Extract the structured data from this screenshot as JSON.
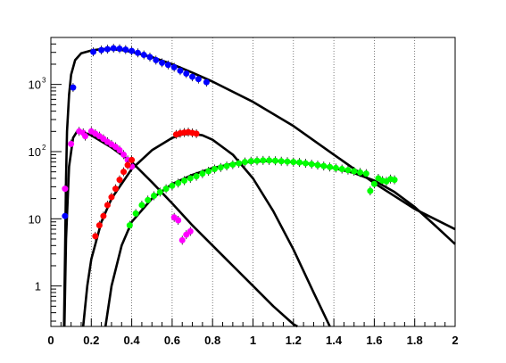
{
  "chart_data": {
    "type": "scatter",
    "title": "",
    "xlabel": "",
    "ylabel": "",
    "xlim": [
      0,
      2
    ],
    "ylim": [
      0.25,
      5000
    ],
    "yscale": "log",
    "grid": "vertical dotted lines at major x ticks",
    "x_ticks": [
      {
        "value": 0,
        "label": "0"
      },
      {
        "value": 0.2,
        "label": "0.2"
      },
      {
        "value": 0.4,
        "label": "0.4"
      },
      {
        "value": 0.6,
        "label": "0.6"
      },
      {
        "value": 0.8,
        "label": "0.8"
      },
      {
        "value": 1.0,
        "label": "1"
      },
      {
        "value": 1.2,
        "label": "1.2"
      },
      {
        "value": 1.4,
        "label": "1.4"
      },
      {
        "value": 1.6,
        "label": "1.6"
      },
      {
        "value": 1.8,
        "label": "1.8"
      },
      {
        "value": 2.0,
        "label": "2"
      }
    ],
    "y_ticks": [
      {
        "value": 1,
        "base": "1",
        "exp": ""
      },
      {
        "value": 10,
        "base": "10",
        "exp": ""
      },
      {
        "value": 100,
        "base": "10",
        "exp": "2"
      },
      {
        "value": 1000,
        "base": "10",
        "exp": "3"
      }
    ],
    "series": [
      {
        "color": "#0000ff",
        "points": [
          [
            0.07,
            11
          ],
          [
            0.11,
            900
          ],
          [
            0.21,
            3050
          ],
          [
            0.25,
            3250
          ],
          [
            0.28,
            3350
          ],
          [
            0.31,
            3450
          ],
          [
            0.34,
            3400
          ],
          [
            0.37,
            3300
          ],
          [
            0.4,
            3150
          ],
          [
            0.43,
            2950
          ],
          [
            0.46,
            2750
          ],
          [
            0.49,
            2550
          ],
          [
            0.52,
            2300
          ],
          [
            0.55,
            2100
          ],
          [
            0.58,
            1950
          ],
          [
            0.61,
            1800
          ],
          [
            0.64,
            1600
          ],
          [
            0.67,
            1450
          ],
          [
            0.7,
            1300
          ],
          [
            0.73,
            1200
          ],
          [
            0.77,
            1080
          ]
        ]
      },
      {
        "color": "#ff00ff",
        "points": [
          [
            0.07,
            28
          ],
          [
            0.1,
            130
          ],
          [
            0.14,
            200
          ],
          [
            0.16,
            190
          ],
          [
            0.17,
            170
          ],
          [
            0.2,
            200
          ],
          [
            0.22,
            185
          ],
          [
            0.24,
            170
          ],
          [
            0.26,
            155
          ],
          [
            0.28,
            140
          ],
          [
            0.3,
            128
          ],
          [
            0.32,
            118
          ],
          [
            0.34,
            105
          ],
          [
            0.36,
            90
          ],
          [
            0.38,
            75
          ],
          [
            0.4,
            60
          ],
          [
            0.61,
            10.5
          ],
          [
            0.63,
            9.5
          ],
          [
            0.65,
            4.8
          ],
          [
            0.67,
            5.8
          ],
          [
            0.69,
            6.5
          ]
        ]
      },
      {
        "color": "#ff0000",
        "points": [
          [
            0.22,
            5.5
          ],
          [
            0.24,
            8
          ],
          [
            0.26,
            11
          ],
          [
            0.28,
            16
          ],
          [
            0.3,
            21
          ],
          [
            0.32,
            28
          ],
          [
            0.34,
            38
          ],
          [
            0.36,
            50
          ],
          [
            0.38,
            63
          ],
          [
            0.4,
            75
          ],
          [
            0.62,
            180
          ],
          [
            0.64,
            188
          ],
          [
            0.66,
            192
          ],
          [
            0.68,
            195
          ],
          [
            0.7,
            190
          ],
          [
            0.72,
            185
          ]
        ]
      },
      {
        "color": "#00ff00",
        "points": [
          [
            0.39,
            8
          ],
          [
            0.42,
            12
          ],
          [
            0.45,
            16
          ],
          [
            0.48,
            19
          ],
          [
            0.51,
            22
          ],
          [
            0.54,
            25
          ],
          [
            0.57,
            28
          ],
          [
            0.6,
            31
          ],
          [
            0.63,
            34
          ],
          [
            0.66,
            37
          ],
          [
            0.69,
            40
          ],
          [
            0.72,
            43
          ],
          [
            0.75,
            47
          ],
          [
            0.78,
            51
          ],
          [
            0.81,
            55
          ],
          [
            0.84,
            58
          ],
          [
            0.87,
            61
          ],
          [
            0.9,
            64
          ],
          [
            0.93,
            67
          ],
          [
            0.96,
            70
          ],
          [
            0.99,
            72
          ],
          [
            1.02,
            73
          ],
          [
            1.05,
            74
          ],
          [
            1.08,
            74
          ],
          [
            1.11,
            73
          ],
          [
            1.14,
            72
          ],
          [
            1.17,
            71
          ],
          [
            1.2,
            70
          ],
          [
            1.23,
            69
          ],
          [
            1.26,
            67
          ],
          [
            1.29,
            65
          ],
          [
            1.32,
            63
          ],
          [
            1.35,
            61
          ],
          [
            1.38,
            59
          ],
          [
            1.41,
            57
          ],
          [
            1.44,
            55
          ],
          [
            1.47,
            53
          ],
          [
            1.5,
            51
          ],
          [
            1.53,
            49
          ],
          [
            1.56,
            47
          ],
          [
            1.58,
            26
          ],
          [
            1.6,
            33
          ],
          [
            1.62,
            40
          ],
          [
            1.64,
            37
          ],
          [
            1.66,
            36
          ],
          [
            1.68,
            39
          ],
          [
            1.7,
            38
          ]
        ]
      }
    ],
    "curves": [
      {
        "name_hidden": "",
        "points": [
          [
            0.065,
            0.25
          ],
          [
            0.07,
            3
          ],
          [
            0.075,
            40
          ],
          [
            0.08,
            200
          ],
          [
            0.09,
            700
          ],
          [
            0.1,
            1400
          ],
          [
            0.12,
            2300
          ],
          [
            0.15,
            2900
          ],
          [
            0.2,
            3200
          ],
          [
            0.25,
            3350
          ],
          [
            0.3,
            3350
          ],
          [
            0.35,
            3250
          ],
          [
            0.4,
            3050
          ],
          [
            0.5,
            2550
          ],
          [
            0.6,
            2000
          ],
          [
            0.7,
            1500
          ],
          [
            0.8,
            1100
          ],
          [
            1.0,
            550
          ],
          [
            1.2,
            240
          ],
          [
            1.4,
            90
          ],
          [
            1.6,
            34
          ],
          [
            1.8,
            14
          ],
          [
            2.0,
            7
          ]
        ]
      },
      {
        "name_hidden": "",
        "points": [
          [
            0.067,
            0.25
          ],
          [
            0.075,
            5
          ],
          [
            0.09,
            60
          ],
          [
            0.11,
            160
          ],
          [
            0.13,
            200
          ],
          [
            0.15,
            200
          ],
          [
            0.2,
            175
          ],
          [
            0.3,
            115
          ],
          [
            0.4,
            70
          ],
          [
            0.5,
            35
          ],
          [
            0.6,
            17
          ],
          [
            0.7,
            8
          ],
          [
            0.8,
            4
          ],
          [
            0.9,
            2
          ],
          [
            1.0,
            1.0
          ],
          [
            1.1,
            0.5
          ],
          [
            1.2,
            0.27
          ],
          [
            1.22,
            0.25
          ]
        ]
      },
      {
        "name_hidden": "",
        "points": [
          [
            0.16,
            0.25
          ],
          [
            0.18,
            1
          ],
          [
            0.2,
            2.5
          ],
          [
            0.25,
            9
          ],
          [
            0.3,
            20
          ],
          [
            0.4,
            55
          ],
          [
            0.5,
            105
          ],
          [
            0.6,
            160
          ],
          [
            0.65,
            180
          ],
          [
            0.7,
            185
          ],
          [
            0.75,
            175
          ],
          [
            0.8,
            150
          ],
          [
            0.9,
            90
          ],
          [
            1.0,
            40
          ],
          [
            1.1,
            13
          ],
          [
            1.2,
            3.5
          ],
          [
            1.3,
            0.8
          ],
          [
            1.38,
            0.25
          ]
        ]
      },
      {
        "name_hidden": "",
        "points": [
          [
            0.27,
            0.25
          ],
          [
            0.3,
            1
          ],
          [
            0.35,
            4
          ],
          [
            0.4,
            9
          ],
          [
            0.5,
            20
          ],
          [
            0.6,
            33
          ],
          [
            0.7,
            45
          ],
          [
            0.8,
            57
          ],
          [
            0.9,
            66
          ],
          [
            1.0,
            71
          ],
          [
            1.1,
            73
          ],
          [
            1.2,
            70
          ],
          [
            1.3,
            65
          ],
          [
            1.4,
            57
          ],
          [
            1.5,
            48
          ],
          [
            1.6,
            37
          ],
          [
            1.7,
            25
          ],
          [
            1.8,
            15
          ],
          [
            1.9,
            8
          ],
          [
            2.0,
            4.2
          ]
        ]
      }
    ]
  }
}
